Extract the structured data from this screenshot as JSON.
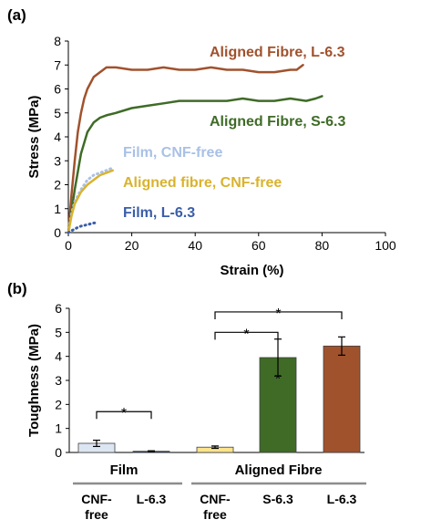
{
  "chart_data": [
    {
      "panel": "(a)",
      "type": "line",
      "xlabel": "Strain (%)",
      "ylabel": "Stress (MPa)",
      "xlim": [
        0,
        100
      ],
      "ylim": [
        0,
        8
      ],
      "xticks": [
        "0",
        "20",
        "40",
        "60",
        "80",
        "100"
      ],
      "yticks": [
        "0",
        "1",
        "2",
        "3",
        "4",
        "5",
        "6",
        "7",
        "8"
      ],
      "series": [
        {
          "name": "Aligned Fibre, L-6.3",
          "color": "#a0522d",
          "style": "solid",
          "x": [
            0,
            1,
            2,
            3,
            4,
            5,
            6,
            8,
            10,
            12,
            15,
            20,
            25,
            30,
            35,
            40,
            45,
            50,
            55,
            60,
            65,
            70,
            72,
            74
          ],
          "y": [
            0,
            1.6,
            3.0,
            4.2,
            5.0,
            5.6,
            6.0,
            6.5,
            6.7,
            6.9,
            6.9,
            6.8,
            6.8,
            6.9,
            6.8,
            6.8,
            6.9,
            6.8,
            6.8,
            6.7,
            6.7,
            6.8,
            6.8,
            7.0
          ]
        },
        {
          "name": "Aligned Fibre, S-6.3",
          "color": "#3f6b27",
          "style": "solid",
          "x": [
            0,
            2,
            4,
            6,
            8,
            10,
            12,
            15,
            20,
            25,
            30,
            35,
            40,
            45,
            50,
            55,
            60,
            65,
            70,
            75,
            78,
            80
          ],
          "y": [
            0,
            1.8,
            3.3,
            4.2,
            4.6,
            4.8,
            4.9,
            5.0,
            5.2,
            5.3,
            5.4,
            5.5,
            5.5,
            5.5,
            5.5,
            5.6,
            5.5,
            5.5,
            5.6,
            5.5,
            5.6,
            5.7
          ]
        },
        {
          "name": "Film, CNF-free",
          "color": "#a9c1e6",
          "style": "dotted",
          "x": [
            0,
            1,
            2,
            4,
            6,
            8,
            10,
            12,
            14
          ],
          "y": [
            0,
            0.8,
            1.3,
            1.8,
            2.2,
            2.4,
            2.5,
            2.6,
            2.7
          ]
        },
        {
          "name": "Aligned fibre, CNF-free",
          "color": "#d9b32e",
          "style": "solid",
          "x": [
            0,
            1,
            2,
            4,
            6,
            8,
            10,
            12,
            14
          ],
          "y": [
            0,
            0.7,
            1.2,
            1.7,
            2.0,
            2.2,
            2.4,
            2.5,
            2.6
          ]
        },
        {
          "name": "Film, L-6.3",
          "color": "#3a5ea8",
          "style": "dotted",
          "x": [
            0,
            1,
            2,
            3,
            4,
            6,
            8,
            9
          ],
          "y": [
            0,
            0.08,
            0.15,
            0.22,
            0.27,
            0.33,
            0.4,
            0.42
          ]
        }
      ]
    },
    {
      "panel": "(b)",
      "type": "bar",
      "ylabel": "Toughness (MPa)",
      "ylim": [
        0,
        6
      ],
      "yticks": [
        "0",
        "1",
        "2",
        "3",
        "4",
        "5",
        "6"
      ],
      "categories": [
        "CNF-free",
        "L-6.3",
        "CNF-free",
        "S-6.3",
        "L-6.3"
      ],
      "category_lines": [
        [
          "CNF-",
          "free"
        ],
        [
          "L-6.3"
        ],
        [
          "CNF-",
          "free"
        ],
        [
          "S-6.3"
        ],
        [
          "L-6.3"
        ]
      ],
      "groups": [
        {
          "label": "Film",
          "members": [
            0,
            1
          ]
        },
        {
          "label": "Aligned Fibre",
          "members": [
            2,
            3,
            4
          ]
        }
      ],
      "values": [
        0.38,
        0.05,
        0.22,
        3.95,
        4.43
      ],
      "errors": [
        0.13,
        0.02,
        0.05,
        0.77,
        0.38
      ],
      "colors": [
        "#dce6f2",
        "#1f3864",
        "#ffe38a",
        "#3f6b27",
        "#a0522d"
      ],
      "significance": [
        {
          "from": 0,
          "to": 1,
          "symbol": "*",
          "level": 1.7
        },
        {
          "from": 2,
          "to": 3,
          "symbol": "*",
          "level": 5.0
        },
        {
          "from": 2,
          "to": 4,
          "symbol": "*",
          "level": 5.85
        }
      ],
      "bar_marks": [
        {
          "bar": 3,
          "symbol": "*",
          "at": 3.1
        }
      ]
    }
  ]
}
